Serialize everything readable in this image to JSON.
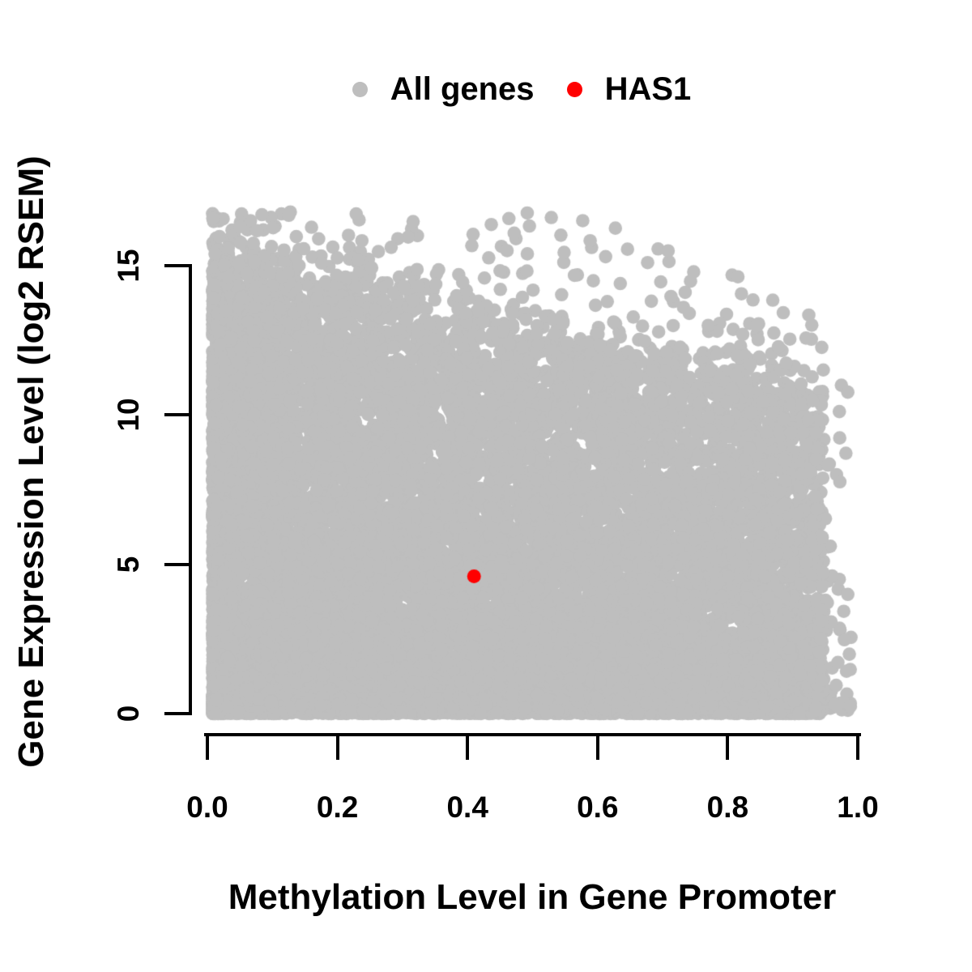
{
  "figure": {
    "background": "#ffffff"
  },
  "legend": {
    "position": "top-center",
    "items": [
      {
        "label": "All genes",
        "color": "#bebebe"
      },
      {
        "label": "HAS1",
        "color": "#ff0000"
      }
    ]
  },
  "chart_data": {
    "type": "scatter",
    "title": "",
    "xlabel": "Methylation Level in Gene Promoter",
    "ylabel": "Gene Expression Level (log2 RSEM)",
    "grid": false,
    "x_axis": {
      "range": [
        0,
        1.0
      ],
      "ticks": [
        0,
        0.2,
        0.4,
        0.6,
        0.8,
        1.0
      ],
      "tick_labels": [
        "0.0",
        "0.2",
        "0.4",
        "0.6",
        "0.8",
        "1.0"
      ]
    },
    "y_axis": {
      "range": [
        0,
        17.3
      ],
      "ticks": [
        0,
        5,
        10,
        15
      ],
      "tick_labels": [
        "0",
        "5",
        "10",
        "15"
      ]
    },
    "series": [
      {
        "name": "All genes",
        "color": "#bebebe",
        "marker": "circle",
        "marker_radius_px": 8.3,
        "point_count_approx": 16000,
        "x_range": [
          0.008,
          0.99
        ],
        "y_range": [
          0,
          17
        ],
        "density_model": {
          "seed": 20,
          "n": 16000,
          "x_min": 0.008,
          "x_span": 0.94,
          "x_skew_frac": 0.56,
          "x_pow": 1.7,
          "right_outlier_frac": 0.003,
          "cap_base": 15.3,
          "cap_slope": 4.6,
          "cap_noise": 1.7,
          "y_pow": 1.48,
          "bottom_band_frac": 0.16,
          "bottom_band_sd": 0.4,
          "tail_frac": 0.012,
          "tail_top": 16.8,
          "tail_knee": 0.6,
          "tail_drop": 10
        }
      },
      {
        "name": "HAS1",
        "color": "#ff0000",
        "marker": "circle",
        "marker_radius_px": 8.5,
        "points": [
          {
            "x": 0.41,
            "y": 4.6
          }
        ]
      }
    ]
  }
}
